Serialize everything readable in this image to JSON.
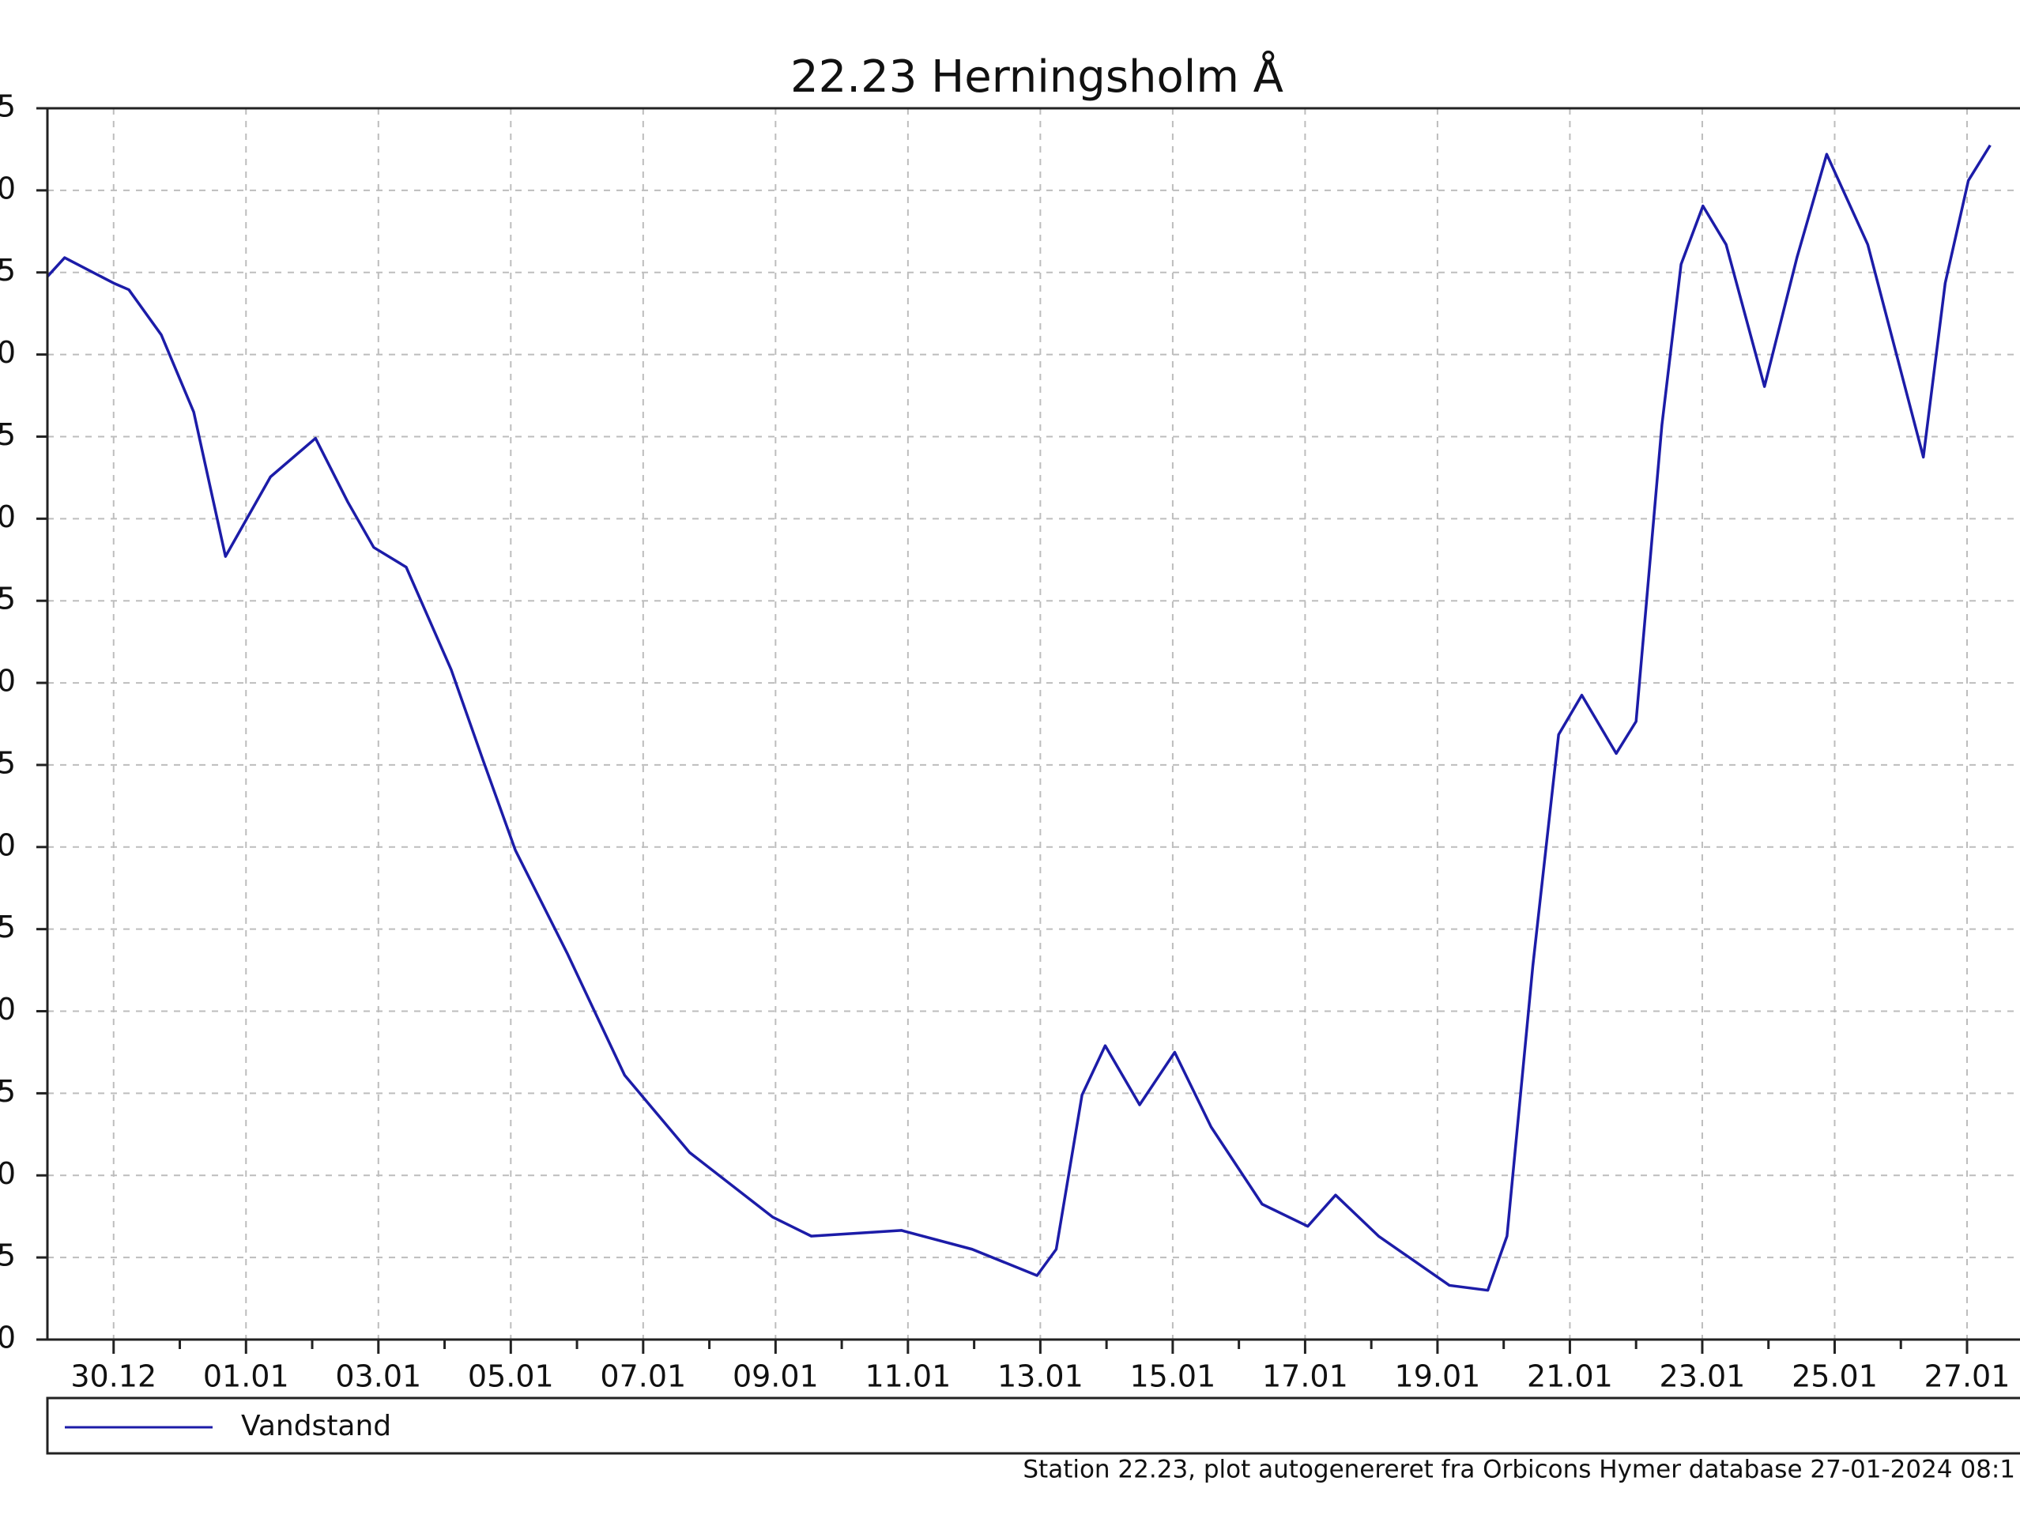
{
  "chart_data": {
    "type": "line",
    "title": "22.23 Herningsholm Å",
    "footer": "Station 22.23, plot autogenereret fra Orbicons Hymer database 27-01-2024 08:1",
    "legend": "bottom",
    "grid": true,
    "xlim": [
      -1,
      28.8
    ],
    "xticks": [
      {
        "value": 0,
        "label": "30.12"
      },
      {
        "value": 2,
        "label": "01.01"
      },
      {
        "value": 4,
        "label": "03.01"
      },
      {
        "value": 6,
        "label": "05.01"
      },
      {
        "value": 8,
        "label": "07.01"
      },
      {
        "value": 10,
        "label": "09.01"
      },
      {
        "value": 12,
        "label": "11.01"
      },
      {
        "value": 14,
        "label": "13.01"
      },
      {
        "value": 16,
        "label": "15.01"
      },
      {
        "value": 18,
        "label": "17.01"
      },
      {
        "value": 20,
        "label": "19.01"
      },
      {
        "value": 22,
        "label": "21.01"
      },
      {
        "value": 24,
        "label": "23.01"
      },
      {
        "value": 26,
        "label": "25.01"
      },
      {
        "value": 28,
        "label": "27.01"
      }
    ],
    "ylim": [
      0,
      15
    ],
    "yticks": [
      {
        "value": 0,
        "label": "0"
      },
      {
        "value": 1,
        "label": "5"
      },
      {
        "value": 2,
        "label": "0"
      },
      {
        "value": 3,
        "label": "5"
      },
      {
        "value": 4,
        "label": "0"
      },
      {
        "value": 5,
        "label": "5"
      },
      {
        "value": 6,
        "label": "0"
      },
      {
        "value": 7,
        "label": "5"
      },
      {
        "value": 8,
        "label": "0"
      },
      {
        "value": 9,
        "label": "5"
      },
      {
        "value": 10,
        "label": "0"
      },
      {
        "value": 11,
        "label": "5"
      },
      {
        "value": 12,
        "label": "0"
      },
      {
        "value": 13,
        "label": "5"
      },
      {
        "value": 14,
        "label": "0"
      },
      {
        "value": 15,
        "label": "5"
      }
    ],
    "x": [
      -1,
      -0.74,
      0,
      0.23,
      0.72,
      1.21,
      1.69,
      2.37,
      3.05,
      3.54,
      3.93,
      4.42,
      5.1,
      5.58,
      6.07,
      6.85,
      7.72,
      8.7,
      9.96,
      10.54,
      11.9,
      12.97,
      13.95,
      14.24,
      14.63,
      14.98,
      15.5,
      16.03,
      16.58,
      17.35,
      18.04,
      18.46,
      19.11,
      20.18,
      20.76,
      21.05,
      21.44,
      21.83,
      22.18,
      22.7,
      23,
      23.39,
      23.68,
      24.01,
      24.36,
      24.94,
      25.43,
      25.88,
      26.5,
      27.34,
      27.67,
      28.02,
      28.35
    ],
    "series": [
      {
        "name": "Vandstand",
        "color": "#1c1ca8",
        "values": [
          12.95,
          13.18,
          12.87,
          12.79,
          12.24,
          11.3,
          9.54,
          10.51,
          10.98,
          10.2,
          9.65,
          9.41,
          8.16,
          7.06,
          5.96,
          4.71,
          3.22,
          2.28,
          1.49,
          1.26,
          1.33,
          1.1,
          0.78,
          1.1,
          2.98,
          3.58,
          2.86,
          3.5,
          2.59,
          1.65,
          1.38,
          1.76,
          1.26,
          0.66,
          0.6,
          1.26,
          4.55,
          7.37,
          7.85,
          7.14,
          7.53,
          11.14,
          13.1,
          13.81,
          13.34,
          11.61,
          13.18,
          14.44,
          13.34,
          10.75,
          12.87,
          14.12,
          14.55
        ]
      }
    ]
  }
}
